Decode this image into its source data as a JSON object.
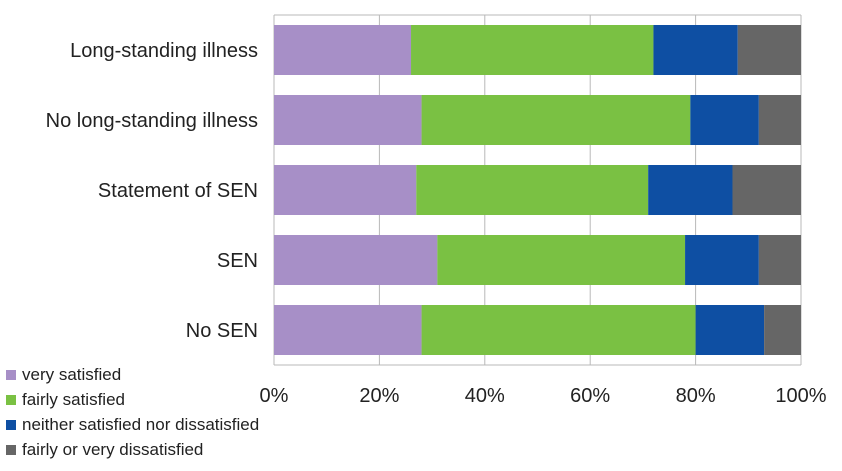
{
  "chart_data": {
    "type": "bar",
    "orientation": "horizontal",
    "stacked": true,
    "normalized_percent": true,
    "categories": [
      "Long-standing illness",
      "No long-standing illness",
      "Statement of SEN",
      "SEN",
      "No SEN"
    ],
    "series": [
      {
        "name": "very satisfied",
        "color": "#a78fc7",
        "values": [
          26,
          28,
          27,
          31,
          28
        ]
      },
      {
        "name": "fairly satisfied",
        "color": "#7ac143",
        "values": [
          46,
          51,
          44,
          47,
          52
        ]
      },
      {
        "name": "neither satisfied nor dissatisfied",
        "color": "#0e4fa3",
        "values": [
          16,
          13,
          16,
          14,
          13
        ]
      },
      {
        "name": "fairly or very dissatisfied",
        "color": "#666666",
        "values": [
          12,
          8,
          13,
          8,
          7
        ]
      }
    ],
    "xlim": [
      0,
      100
    ],
    "xticks": [
      "0%",
      "20%",
      "40%",
      "60%",
      "80%",
      "100%"
    ],
    "grid": "vertical",
    "legend_position": "bottom-left"
  }
}
